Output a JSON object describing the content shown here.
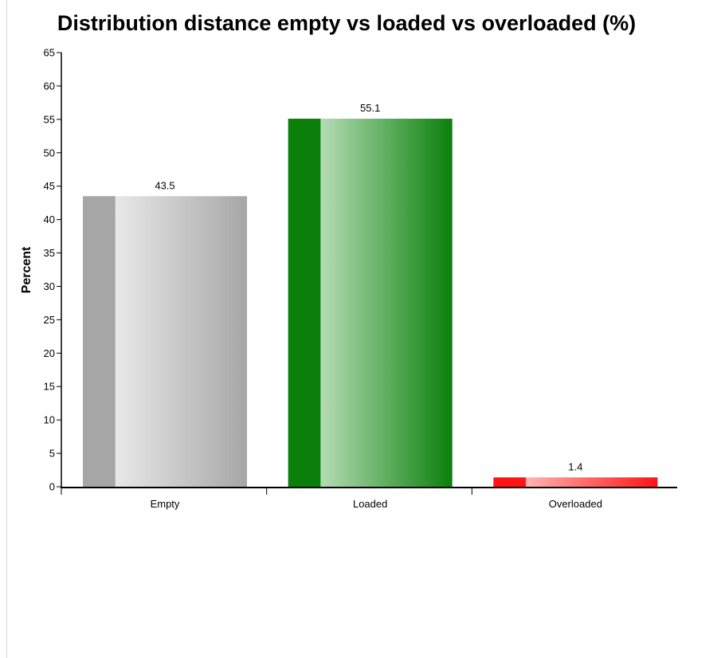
{
  "chart_data": {
    "type": "bar",
    "title": "Distribution distance empty vs loaded vs overloaded (%)",
    "xlabel": "",
    "ylabel": "Percent",
    "categories": [
      "Empty",
      "Loaded",
      "Overloaded"
    ],
    "values": [
      43.5,
      55.1,
      1.4
    ],
    "value_labels": [
      "43.5",
      "55.1",
      "1.4"
    ],
    "ylim": [
      0,
      65
    ],
    "yticks": [
      "0",
      "5",
      "10",
      "15",
      "20",
      "25",
      "30",
      "35",
      "40",
      "45",
      "50",
      "55",
      "60",
      "65"
    ],
    "grid": false,
    "legend": "none",
    "colors": {
      "Empty": {
        "dark": "#a6a6a6",
        "light": "#e8e8e8"
      },
      "Loaded": {
        "dark": "#0a800a",
        "light": "#b5dcb5"
      },
      "Overloaded": {
        "dark": "#ff1414",
        "light": "#ffb3b3"
      }
    }
  }
}
